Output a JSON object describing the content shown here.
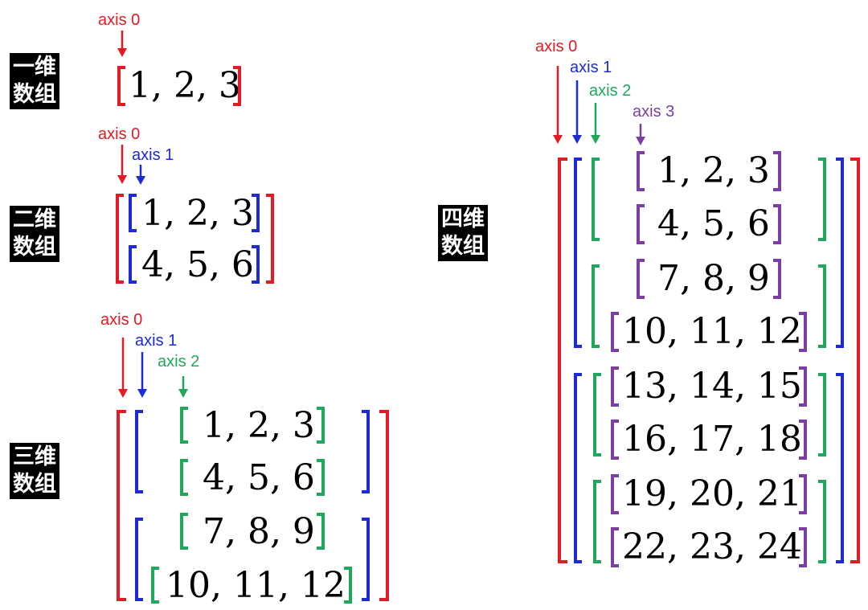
{
  "labels": {
    "one_d": [
      "一维",
      "数组"
    ],
    "two_d": [
      "二维",
      "数组"
    ],
    "three_d": [
      "三维",
      "数组"
    ],
    "four_d": [
      "四维",
      "数组"
    ]
  },
  "axes": {
    "axis0": "axis 0",
    "axis1": "axis 1",
    "axis2": "axis 2",
    "axis3": "axis 3"
  },
  "colors": {
    "axis0": "#e01b24",
    "axis1": "#1c2bd3",
    "axis2": "#1fa85a",
    "axis3": "#7a3fa0"
  },
  "arrays": {
    "one_d": [
      "1, 2, 3"
    ],
    "two_d": [
      "1, 2, 3",
      "4, 5, 6"
    ],
    "three_d": [
      "1, 2, 3",
      "4, 5, 6",
      "7, 8, 9",
      "10, 11, 12"
    ],
    "four_d": [
      "1, 2, 3",
      "4, 5, 6",
      "7, 8, 9",
      "10, 11, 12",
      "13, 14, 15",
      "16, 17, 18",
      "19, 20, 21",
      "22, 23, 24"
    ]
  }
}
